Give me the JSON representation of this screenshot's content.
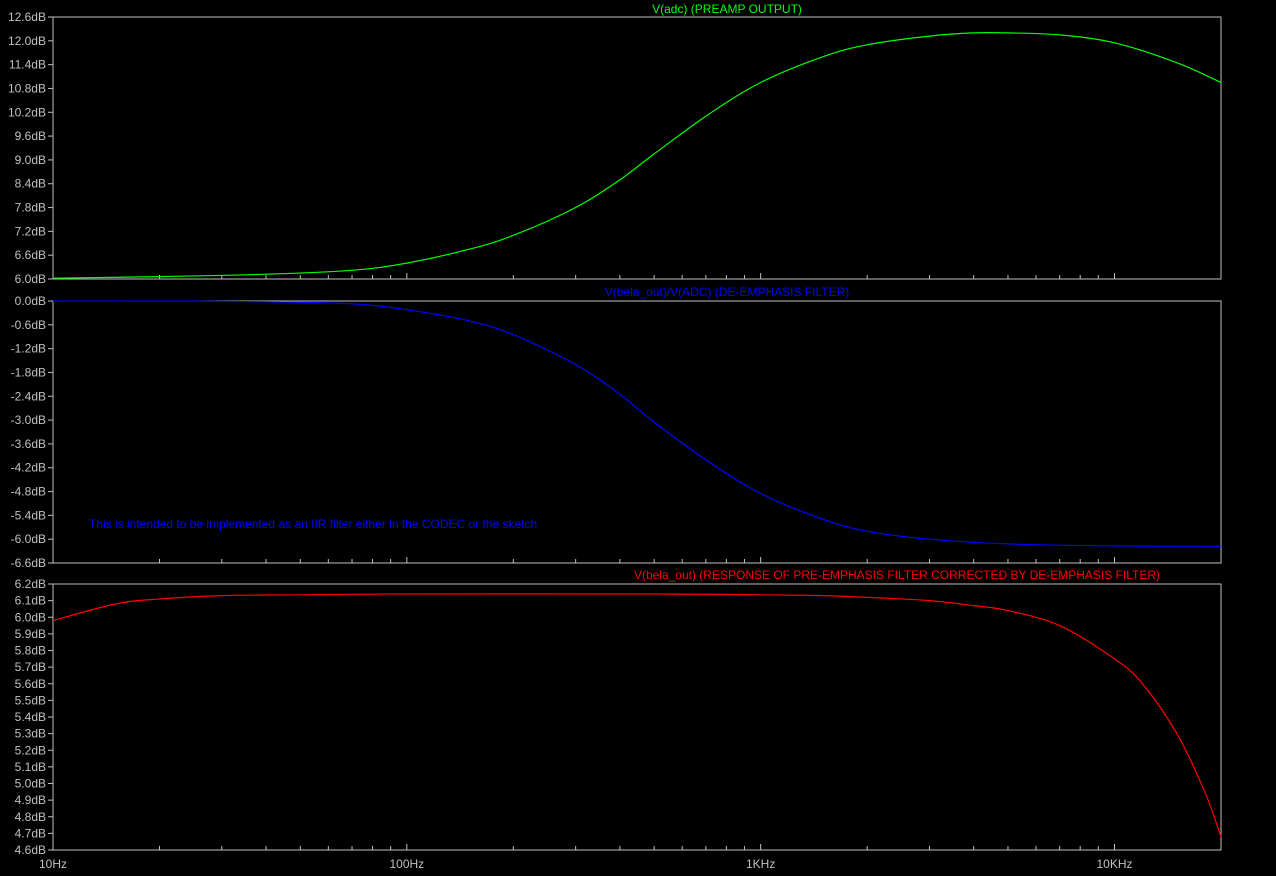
{
  "chart_data": [
    {
      "type": "line",
      "title": "V(adc) (PREAMP OUTPUT)",
      "color": "#00ff00",
      "ylim": [
        6.0,
        12.6
      ],
      "yticks": [
        6.0,
        6.6,
        7.2,
        7.8,
        8.4,
        9.0,
        9.6,
        10.2,
        10.8,
        11.4,
        12.0,
        12.6
      ],
      "ytick_labels": [
        "6.0dB",
        "6.6dB",
        "7.2dB",
        "7.8dB",
        "8.4dB",
        "9.0dB",
        "9.6dB",
        "10.2dB",
        "10.8dB",
        "11.4dB",
        "12.0dB",
        "12.6dB"
      ],
      "x": [
        10,
        20,
        40,
        70,
        100,
        150,
        200,
        300,
        400,
        500,
        700,
        1000,
        1500,
        2000,
        3000,
        4000,
        5000,
        7000,
        10000,
        15000,
        20000
      ],
      "series": [
        {
          "values": [
            6.02,
            6.06,
            6.12,
            6.22,
            6.4,
            6.75,
            7.1,
            7.8,
            8.5,
            9.15,
            10.1,
            10.95,
            11.6,
            11.9,
            12.12,
            12.2,
            12.2,
            12.15,
            11.95,
            11.45,
            10.95
          ]
        }
      ]
    },
    {
      "type": "line",
      "title": "V(bela_out)/V(ADC)  (DE-EMPHASIS FILTER)",
      "color": "#0000ff",
      "annotation": "This is intended to be implemented as an IIR filter either in the CODEC or the sketch",
      "ylim": [
        -6.6,
        0.0
      ],
      "yticks": [
        0.0,
        -0.6,
        -1.2,
        -1.8,
        -2.4,
        -3.0,
        -3.6,
        -4.2,
        -4.8,
        -5.4,
        -6.0,
        -6.6
      ],
      "ytick_labels": [
        "0.0dB",
        "-0.6dB",
        "-1.2dB",
        "-1.8dB",
        "-2.4dB",
        "-3.0dB",
        "-3.6dB",
        "-4.2dB",
        "-4.8dB",
        "-5.4dB",
        "-6.0dB",
        "-6.6dB"
      ],
      "x": [
        10,
        20,
        40,
        70,
        100,
        150,
        200,
        300,
        400,
        500,
        700,
        1000,
        1500,
        2000,
        3000,
        5000,
        10000,
        20000
      ],
      "series": [
        {
          "values": [
            0.0,
            0.0,
            -0.02,
            -0.07,
            -0.22,
            -0.5,
            -0.85,
            -1.6,
            -2.35,
            -3.05,
            -4.0,
            -4.85,
            -5.5,
            -5.8,
            -6.0,
            -6.12,
            -6.17,
            -6.18
          ]
        }
      ]
    },
    {
      "type": "line",
      "title": "V(bela_out) (RESPONSE OF PRE-EMPHASIS FILTER CORRECTED BY DE-EMPHASIS FILTER)",
      "color": "#ff0000",
      "ylim": [
        4.6,
        6.2
      ],
      "yticks": [
        4.6,
        4.7,
        4.8,
        4.9,
        5.0,
        5.1,
        5.2,
        5.3,
        5.4,
        5.5,
        5.6,
        5.7,
        5.8,
        5.9,
        6.0,
        6.1,
        6.2
      ],
      "ytick_labels": [
        "4.6dB",
        "4.7dB",
        "4.8dB",
        "4.9dB",
        "5.0dB",
        "5.1dB",
        "5.2dB",
        "5.3dB",
        "5.4dB",
        "5.5dB",
        "5.6dB",
        "5.7dB",
        "5.8dB",
        "5.9dB",
        "6.0dB",
        "6.1dB",
        "6.2dB"
      ],
      "x": [
        10,
        15,
        20,
        30,
        50,
        100,
        500,
        1000,
        1500,
        2000,
        3000,
        4000,
        5000,
        7000,
        10000,
        12000,
        15000,
        18000,
        20000
      ],
      "series": [
        {
          "values": [
            5.98,
            6.08,
            6.11,
            6.13,
            6.135,
            6.14,
            6.14,
            6.135,
            6.13,
            6.12,
            6.1,
            6.07,
            6.04,
            5.95,
            5.75,
            5.6,
            5.3,
            4.95,
            4.68
          ]
        }
      ]
    }
  ],
  "x_axis": {
    "scale": "log",
    "xlim": [
      10,
      20000
    ],
    "ticks": [
      10,
      100,
      1000,
      10000
    ],
    "tick_labels": [
      "10Hz",
      "100Hz",
      "1KHz",
      "10KHz"
    ]
  }
}
